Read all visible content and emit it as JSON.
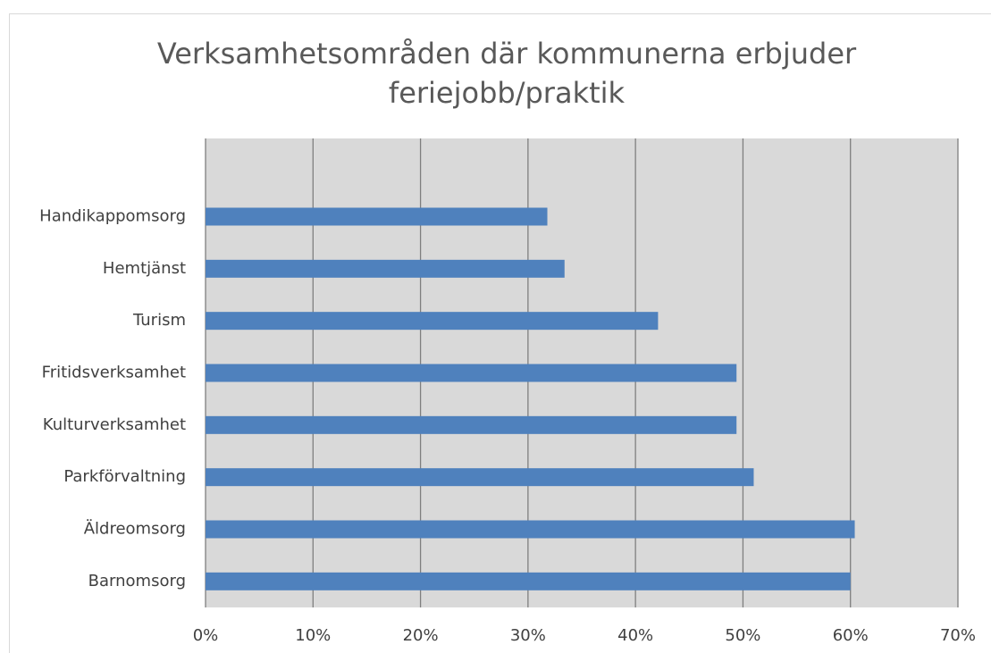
{
  "chart_data": {
    "type": "barh",
    "title": [
      "Verksamhetsområden där kommunerna erbjuder",
      "feriejobb/praktik"
    ],
    "categories": [
      "Barnomsorg",
      "Äldreomsorg",
      "Parkförvaltning",
      "Kulturverksamhet",
      "Fritidsverksamhet",
      "Turism",
      "Hemtjänst",
      "Handikappomsorg",
      null
    ],
    "values": [
      60.0,
      60.4,
      51.0,
      49.4,
      49.4,
      42.1,
      33.4,
      31.8,
      null
    ],
    "color": "#4f81bd",
    "xlim": [
      0,
      70
    ],
    "xticks": [
      {
        "value": 0,
        "label": "0%"
      },
      {
        "value": 10,
        "label": "10%"
      },
      {
        "value": 20,
        "label": "20%"
      },
      {
        "value": 30,
        "label": "30%"
      },
      {
        "value": 40,
        "label": "40%"
      },
      {
        "value": 50,
        "label": "50%"
      },
      {
        "value": 60,
        "label": "60%"
      },
      {
        "value": 70,
        "label": "70%"
      }
    ],
    "grid": true
  }
}
